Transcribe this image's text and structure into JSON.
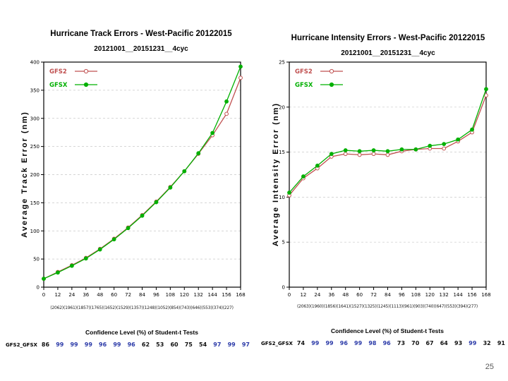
{
  "page": {
    "number": "25",
    "background": "#ffffff"
  },
  "colors": {
    "gfs2_red": "#c05050",
    "gfsx_green": "#00b000",
    "conf_blue": "#2b3aa8",
    "grid_gray": "#c8c8c8"
  },
  "chart_data": [
    {
      "type": "line",
      "title": "Hurricane Track Errors - West-Pacific 20122015",
      "subtitle": "20121001__20151231__4cyc",
      "ylabel": "Average Track Error (nm)",
      "xlabel": "",
      "ylim": [
        0,
        400
      ],
      "ytick": 50,
      "grid": "horizontal",
      "legend_position": "top-left",
      "x": [
        0,
        12,
        24,
        36,
        48,
        60,
        72,
        84,
        96,
        108,
        120,
        132,
        144,
        156,
        168
      ],
      "series": [
        {
          "name": "GFS2",
          "color": "#c05050",
          "marker": "open-circle",
          "values": [
            15,
            27,
            39,
            52,
            68,
            86,
            106,
            128,
            152,
            178,
            206,
            237,
            270,
            308,
            372
          ]
        },
        {
          "name": "GFSX",
          "color": "#00b000",
          "marker": "filled-circle",
          "values": [
            15,
            26,
            38,
            51,
            67,
            85,
            105,
            127,
            151,
            177,
            206,
            238,
            274,
            330,
            392
          ]
        }
      ],
      "sample_counts": [
        "(2062)",
        "(1961)",
        "(1857)",
        "(1765)",
        "(1652)",
        "(1529)",
        "(1357)",
        "(1248)",
        "(1052)",
        "(854)",
        "(743)",
        "(646)",
        "(553)",
        "(374)",
        "(227)"
      ],
      "conf_title": "Confidence Level (%) of Student-t Tests",
      "conf_label": "GFS2_GFSX",
      "conf_values": [
        86,
        99,
        99,
        99,
        96,
        99,
        96,
        62,
        53,
        60,
        75,
        54,
        97,
        99,
        97
      ],
      "conf_blue_threshold": 95
    },
    {
      "type": "line",
      "title": "Hurricane Intensity Errors - West-Pacific 20122015",
      "subtitle": "20121001__20151231__4cyc",
      "ylabel": "Average Intensity Error (nm)",
      "xlabel": "",
      "ylim": [
        0,
        25
      ],
      "ytick": 5,
      "grid": "horizontal",
      "legend_position": "top-left",
      "x": [
        0,
        12,
        24,
        36,
        48,
        60,
        72,
        84,
        96,
        108,
        120,
        132,
        144,
        156,
        168
      ],
      "series": [
        {
          "name": "GFS2",
          "color": "#c05050",
          "marker": "open-circle",
          "values": [
            10.2,
            12.1,
            13.2,
            14.5,
            14.8,
            14.7,
            14.8,
            14.7,
            15.1,
            15.3,
            15.4,
            15.4,
            16.2,
            17.2,
            21.3
          ]
        },
        {
          "name": "GFSX",
          "color": "#00b000",
          "marker": "filled-circle",
          "values": [
            10.5,
            12.3,
            13.5,
            14.8,
            15.2,
            15.1,
            15.2,
            15.1,
            15.3,
            15.3,
            15.7,
            15.9,
            16.4,
            17.5,
            22.0
          ]
        }
      ],
      "sample_counts": [
        "(2063)",
        "(1960)",
        "(1856)",
        "(1641)",
        "(1527)",
        "(1325)",
        "(1245)",
        "(1113)",
        "(961)",
        "(903)",
        "(740)",
        "(647)",
        "(553)",
        "(394)",
        "(277)"
      ],
      "conf_title": "Confidence Level (%) of Student-t Tests",
      "conf_label": "GFS2_GFSX",
      "conf_values": [
        74,
        99,
        99,
        96,
        99,
        98,
        96,
        73,
        70,
        67,
        64,
        93,
        99,
        32,
        91
      ],
      "conf_blue_threshold": 95
    }
  ]
}
